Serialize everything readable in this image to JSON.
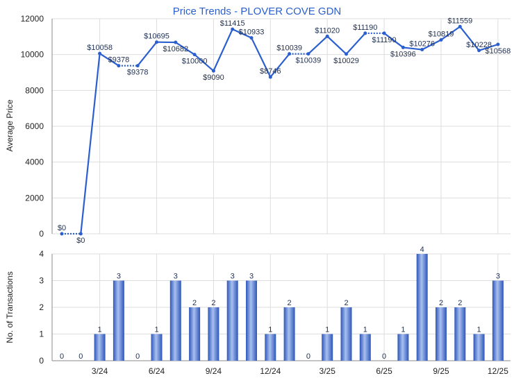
{
  "chart_data": [
    {
      "type": "line",
      "title": "Price Trends - PLOVER COVE GDN",
      "ylabel": "Average Price",
      "ylim": [
        0,
        12000
      ],
      "yticks": [
        "0",
        "2000",
        "4000",
        "6000",
        "8000",
        "10000",
        "12000"
      ],
      "grid": true,
      "x": [
        "1/24",
        "2/24",
        "3/24",
        "4/24",
        "5/24",
        "6/24",
        "7/24",
        "8/24",
        "9/24",
        "10/24",
        "11/24",
        "12/24",
        "1/25",
        "2/25",
        "3/25",
        "4/25",
        "5/25",
        "6/25",
        "7/25",
        "8/25",
        "9/25",
        "10/25",
        "11/25",
        "12/25"
      ],
      "values": [
        0,
        0,
        10058,
        9378,
        9378,
        10695,
        10682,
        10000,
        9090,
        11415,
        10933,
        8746,
        10039,
        10039,
        11020,
        10029,
        11190,
        11190,
        10396,
        10276,
        10819,
        11559,
        10228,
        10568
      ],
      "labels": [
        "$0",
        "$0",
        "$10058",
        "$9378",
        "$9378",
        "$10695",
        "$10682",
        "$10000",
        "$9090",
        "$11415",
        "$10933",
        "$8746",
        "$10039",
        "$10039",
        "$11020",
        "$10029",
        "$11190",
        "$11190",
        "$10396",
        "$10276",
        "$10819",
        "$11559",
        "$10228",
        "$10568"
      ],
      "color": "#2b5fcf",
      "dotted_when_no_transactions": true
    },
    {
      "type": "bar",
      "ylabel": "No. of Transactions",
      "ylim": [
        0,
        4
      ],
      "yticks": [
        "0",
        "1",
        "2",
        "3",
        "4"
      ],
      "xticks": [
        "3/24",
        "6/24",
        "9/24",
        "12/24",
        "3/25",
        "6/25",
        "9/25",
        "12/25"
      ],
      "values": [
        0,
        0,
        1,
        3,
        0,
        1,
        3,
        2,
        2,
        3,
        3,
        1,
        2,
        0,
        1,
        2,
        1,
        0,
        1,
        4,
        2,
        2,
        1,
        3
      ],
      "color": "#3a66c8"
    }
  ]
}
